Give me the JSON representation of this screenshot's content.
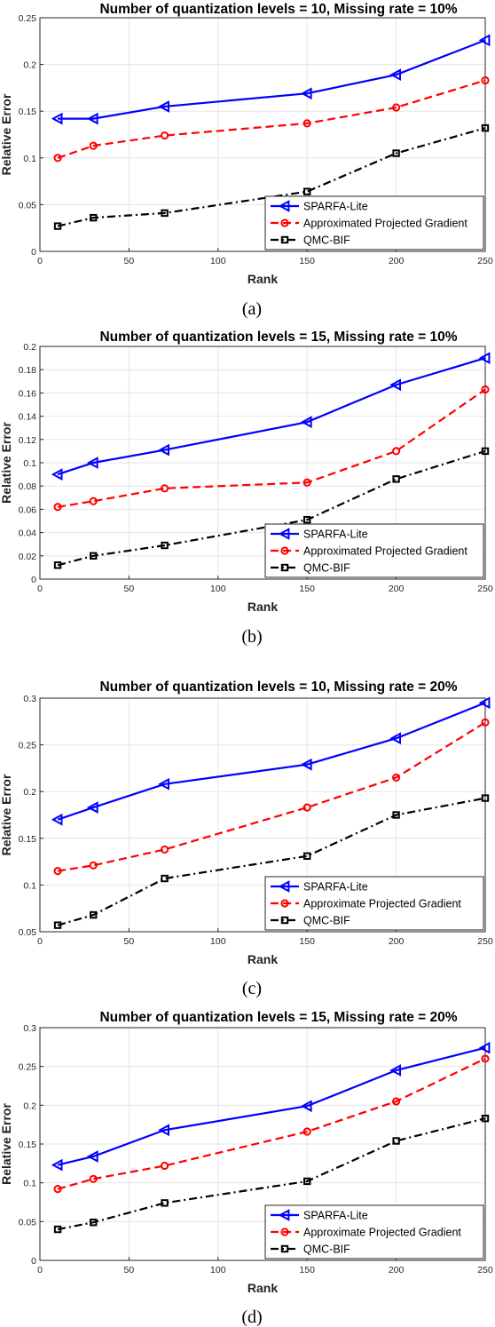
{
  "chart_data": [
    {
      "type": "line",
      "title": "Number of quantization levels = 10, Missing rate = 10%",
      "xlabel": "Rank",
      "ylabel": "Relative Error",
      "caption": "(a)",
      "xlim": [
        0,
        250
      ],
      "ylim": [
        0,
        0.25
      ],
      "xticks": [
        "0",
        "50",
        "100",
        "150",
        "200",
        "250"
      ],
      "yticks": [
        "0",
        "0.05",
        "0.1",
        "0.15",
        "0.2",
        "0.25"
      ],
      "x": [
        10,
        30,
        70,
        150,
        200,
        250
      ],
      "grid": true,
      "legend_position": "bottom-right",
      "series": [
        {
          "name": "SPARFA-Lite",
          "values": [
            0.142,
            0.142,
            0.155,
            0.169,
            0.189,
            0.226
          ]
        },
        {
          "name": "Approximated Projected Gradient",
          "values": [
            0.1,
            0.113,
            0.124,
            0.137,
            0.154,
            0.183
          ]
        },
        {
          "name": "QMC-BIF",
          "values": [
            0.027,
            0.036,
            0.041,
            0.064,
            0.105,
            0.132
          ]
        }
      ]
    },
    {
      "type": "line",
      "title": "Number of quantization levels = 15, Missing rate = 10%",
      "xlabel": "Rank",
      "ylabel": "Relative Error",
      "caption": "(b)",
      "xlim": [
        0,
        250
      ],
      "ylim": [
        0,
        0.2
      ],
      "xticks": [
        "0",
        "50",
        "100",
        "150",
        "200",
        "250"
      ],
      "yticks": [
        "0",
        "0.02",
        "0.04",
        "0.06",
        "0.08",
        "0.1",
        "0.12",
        "0.14",
        "0.16",
        "0.18",
        "0.2"
      ],
      "x": [
        10,
        30,
        70,
        150,
        200,
        250
      ],
      "grid": true,
      "legend_position": "bottom-right",
      "series": [
        {
          "name": "SPARFA-Lite",
          "values": [
            0.09,
            0.1,
            0.111,
            0.135,
            0.167,
            0.19
          ]
        },
        {
          "name": "Approximated Projected Gradient",
          "values": [
            0.062,
            0.067,
            0.078,
            0.083,
            0.11,
            0.163
          ]
        },
        {
          "name": "QMC-BIF",
          "values": [
            0.012,
            0.02,
            0.029,
            0.051,
            0.086,
            0.11
          ]
        }
      ]
    },
    {
      "type": "line",
      "title": "Number of quantization levels = 10, Missing rate = 20%",
      "xlabel": "Rank",
      "ylabel": "Relative Error",
      "caption": "(c)",
      "xlim": [
        0,
        250
      ],
      "ylim": [
        0.05,
        0.3
      ],
      "xticks": [
        "0",
        "50",
        "100",
        "150",
        "200",
        "250"
      ],
      "yticks": [
        "0.05",
        "0.1",
        "0.15",
        "0.2",
        "0.25",
        "0.3"
      ],
      "x": [
        10,
        30,
        70,
        150,
        200,
        250
      ],
      "grid": true,
      "legend_position": "bottom-right",
      "series": [
        {
          "name": "SPARFA-Lite",
          "values": [
            0.17,
            0.183,
            0.208,
            0.229,
            0.257,
            0.295
          ]
        },
        {
          "name": "Approximate Projected Gradient",
          "values": [
            0.115,
            0.121,
            0.138,
            0.183,
            0.215,
            0.274
          ]
        },
        {
          "name": "QMC-BIF",
          "values": [
            0.057,
            0.068,
            0.107,
            0.131,
            0.175,
            0.193
          ]
        }
      ]
    },
    {
      "type": "line",
      "title": "Number of quantization levels = 15, Missing rate = 20%",
      "xlabel": "Rank",
      "ylabel": "Relative Error",
      "caption": "(d)",
      "xlim": [
        0,
        250
      ],
      "ylim": [
        0,
        0.3
      ],
      "xticks": [
        "0",
        "50",
        "100",
        "150",
        "200",
        "250"
      ],
      "yticks": [
        "0",
        "0.05",
        "0.1",
        "0.15",
        "0.2",
        "0.25",
        "0.3"
      ],
      "x": [
        10,
        30,
        70,
        150,
        200,
        250
      ],
      "grid": true,
      "legend_position": "bottom-right",
      "series": [
        {
          "name": "SPARFA-Lite",
          "values": [
            0.123,
            0.134,
            0.168,
            0.199,
            0.245,
            0.274
          ]
        },
        {
          "name": "Approximate Projected Gradient",
          "values": [
            0.092,
            0.105,
            0.122,
            0.166,
            0.205,
            0.26
          ]
        },
        {
          "name": "QMC-BIF",
          "values": [
            0.04,
            0.049,
            0.074,
            0.102,
            0.154,
            0.183
          ]
        }
      ]
    }
  ],
  "styles": {
    "series_colors": [
      "#0000ff",
      "#ff0000",
      "#000000"
    ],
    "series_dash": [
      "solid",
      "dashed",
      "dashdot"
    ],
    "series_markers": [
      "left-triangle",
      "circle",
      "square"
    ],
    "grid_color": "#e6e6e6",
    "axis_color": "#262626"
  }
}
